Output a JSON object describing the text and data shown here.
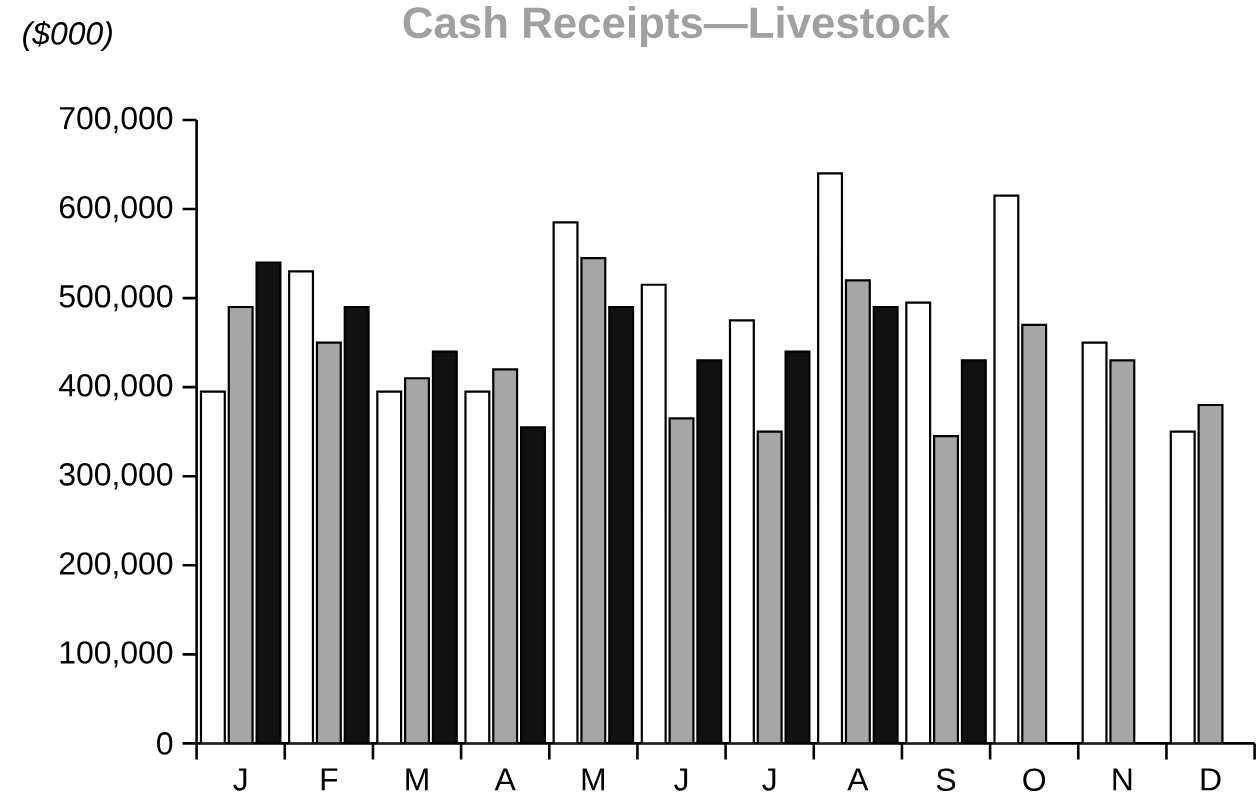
{
  "chart_data": {
    "type": "bar",
    "title": "Cash Receipts—Livestock",
    "ylabel": "($000)",
    "categories": [
      "J",
      "F",
      "M",
      "A",
      "M",
      "J",
      "J",
      "A",
      "S",
      "O",
      "N",
      "D"
    ],
    "series": [
      {
        "color": "#ffffff",
        "values": [
          395000,
          530000,
          395000,
          395000,
          585000,
          515000,
          475000,
          640000,
          495000,
          615000,
          450000,
          350000
        ]
      },
      {
        "color": "#a6a6a6",
        "values": [
          490000,
          450000,
          410000,
          420000,
          545000,
          365000,
          350000,
          520000,
          345000,
          470000,
          430000,
          380000
        ]
      },
      {
        "color": "#111111",
        "values": [
          540000,
          490000,
          440000,
          355000,
          490000,
          430000,
          440000,
          490000,
          430000,
          null,
          null,
          null
        ]
      }
    ],
    "ylim": [
      0,
      700000
    ],
    "yticks": [
      0,
      {
        "value": 100000,
        "label": "100,000"
      },
      {
        "value": 200000,
        "label": "200,000"
      },
      {
        "value": 300000,
        "label": "300,000"
      },
      {
        "value": 400000,
        "label": "400,000"
      },
      {
        "value": 500000,
        "label": "500,000"
      },
      {
        "value": 600000,
        "label": "600,000"
      },
      {
        "value": 700000,
        "label": "700,000"
      }
    ]
  }
}
